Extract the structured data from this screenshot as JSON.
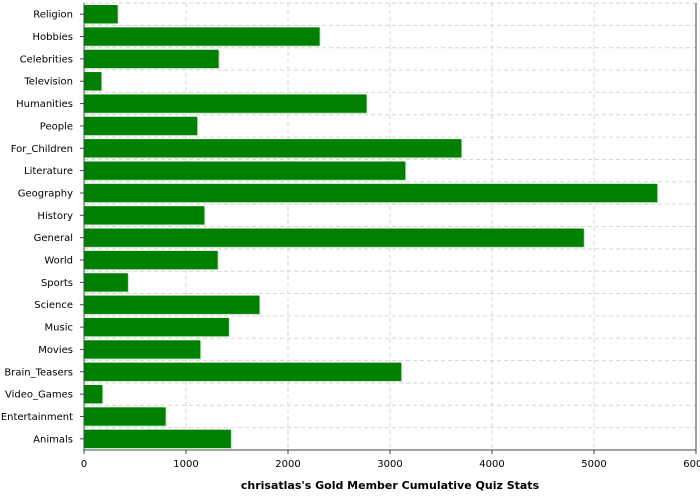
{
  "chart_data": {
    "type": "bar",
    "orientation": "horizontal",
    "title": "",
    "xlabel": "chrisatlas's Gold Member Cumulative Quiz Stats",
    "ylabel": "",
    "xlim": [
      0,
      6000
    ],
    "xticks": [
      0,
      1000,
      2000,
      3000,
      4000,
      5000,
      6000
    ],
    "grid": true,
    "colors": {
      "bar": "#008000",
      "bar_shadow": "#c8e6c8"
    },
    "categories": [
      "Religion",
      "Hobbies",
      "Celebrities",
      "Television",
      "Humanities",
      "People",
      "For_Children",
      "Literature",
      "Geography",
      "History",
      "General",
      "World",
      "Sports",
      "Science",
      "Music",
      "Movies",
      "Brain_Teasers",
      "Video_Games",
      "Entertainment",
      "Animals"
    ],
    "values": [
      330,
      2310,
      1320,
      170,
      2770,
      1110,
      3700,
      3150,
      5620,
      1180,
      4900,
      1310,
      430,
      1720,
      1420,
      1140,
      3110,
      180,
      800,
      1440
    ]
  }
}
